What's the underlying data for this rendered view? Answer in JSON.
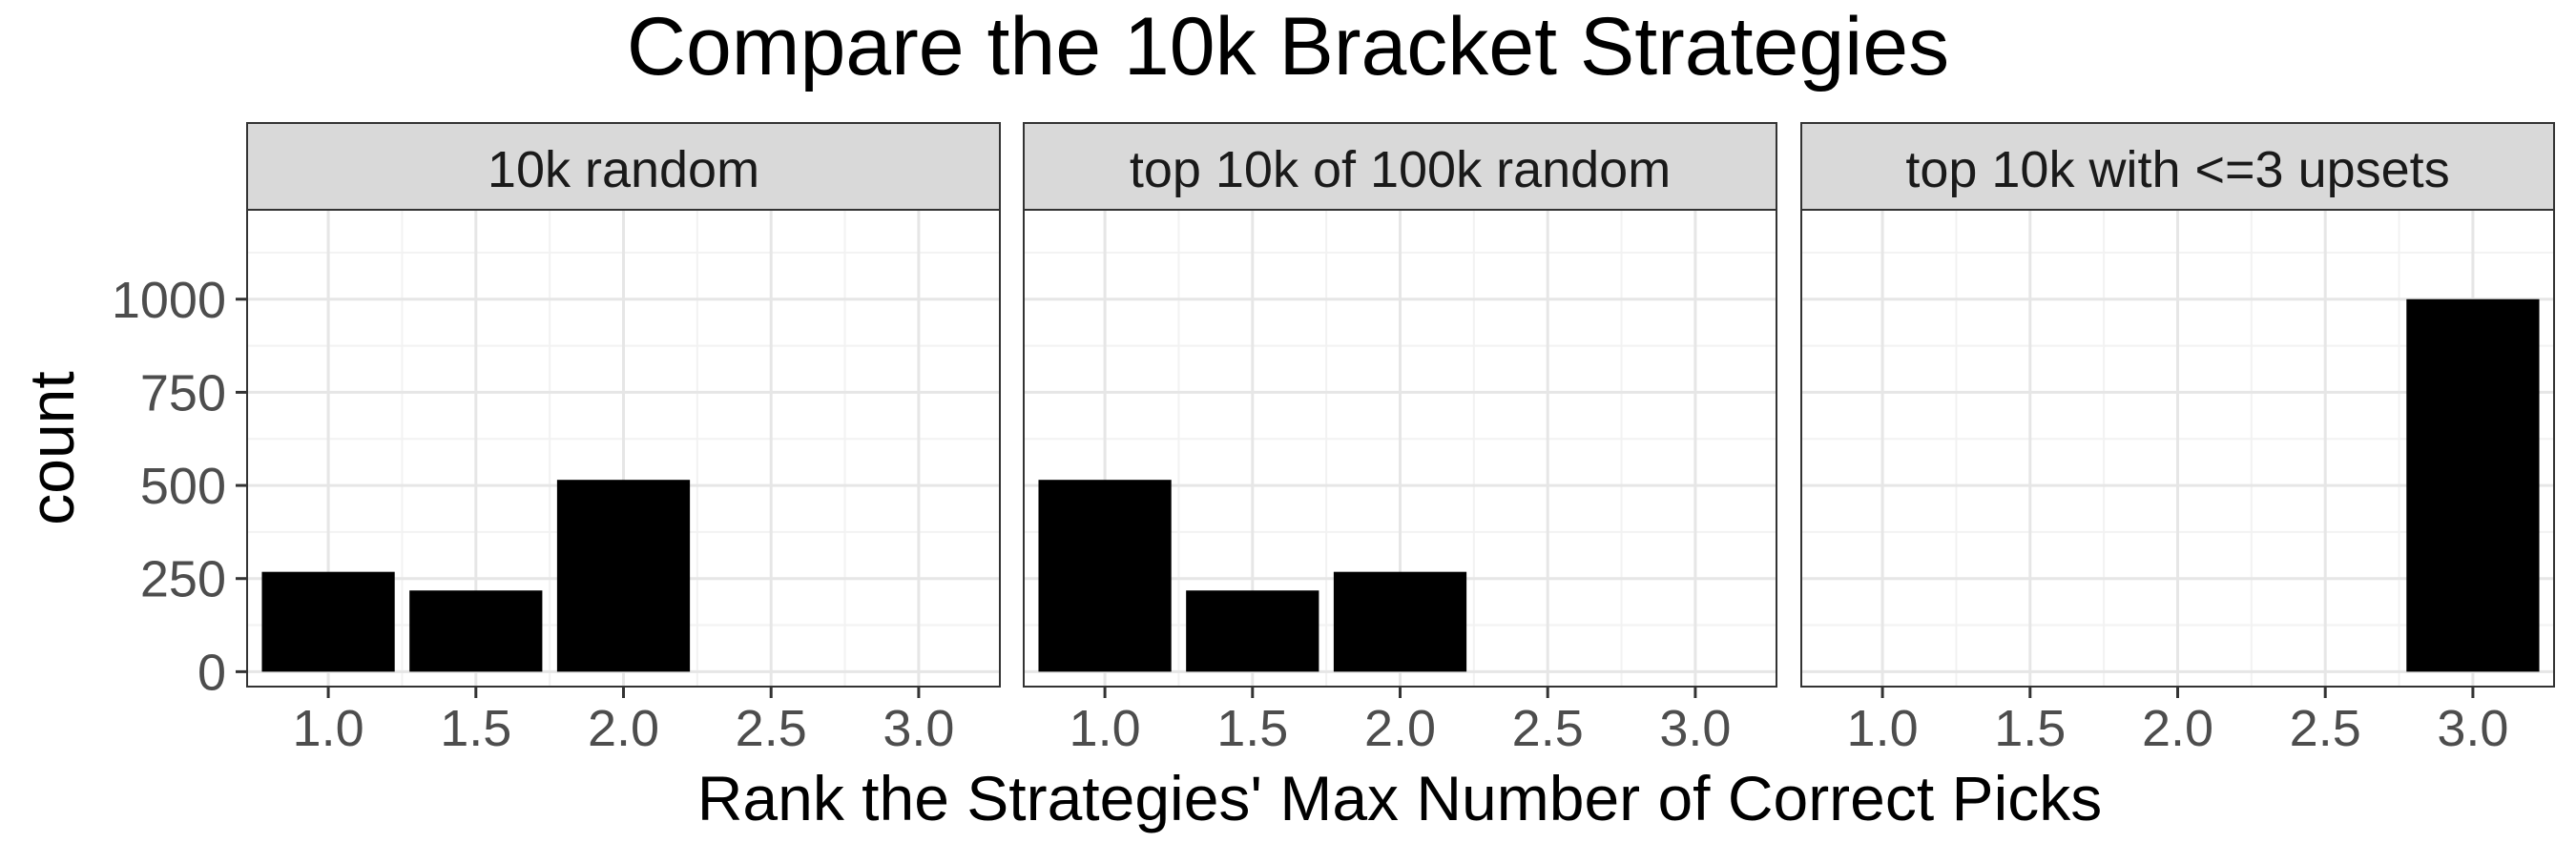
{
  "chart_data": {
    "type": "bar",
    "title": "Compare the 10k Bracket Strategies",
    "xlabel": "Rank the Strategies' Max Number of Correct Picks",
    "ylabel": "count",
    "x_ticks": [
      "1.0",
      "1.5",
      "2.0",
      "2.5",
      "3.0"
    ],
    "x_tick_values": [
      1.0,
      1.5,
      2.0,
      2.5,
      3.0
    ],
    "xlim": [
      0.725,
      3.275
    ],
    "y_ticks": [
      "0",
      "250",
      "500",
      "750",
      "1000"
    ],
    "y_tick_values": [
      0,
      250,
      500,
      750,
      1000
    ],
    "ylim": [
      -40,
      1240
    ],
    "bar_width": 0.45,
    "bar_color": "#000000",
    "grid": true,
    "legend": "none",
    "facets": [
      {
        "label": "10k random",
        "x": [
          1,
          1.5,
          2
        ],
        "values": [
          268,
          218,
          515
        ]
      },
      {
        "label": "top 10k of 100k random",
        "x": [
          1,
          1.5,
          2
        ],
        "values": [
          515,
          218,
          268
        ]
      },
      {
        "label": "top 10k with <=3 upsets",
        "x": [
          3
        ],
        "values": [
          1000
        ]
      }
    ]
  }
}
